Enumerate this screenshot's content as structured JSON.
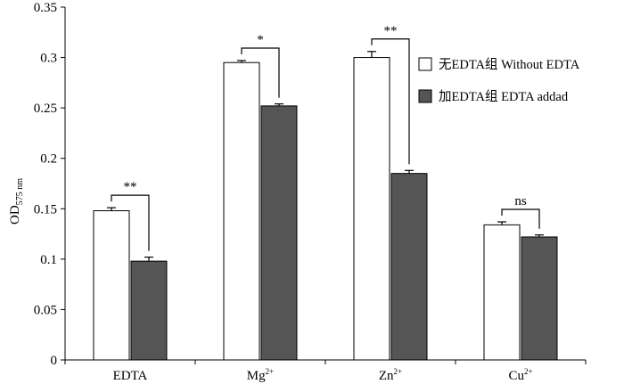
{
  "chart_data": {
    "type": "bar",
    "title": "",
    "xlabel": "",
    "ylabel": "OD",
    "ylabel_sub": "575 nm",
    "ylim": [
      0,
      0.35
    ],
    "yticks": [
      "0",
      "0.05",
      "0.1",
      "0.15",
      "0.2",
      "0.25",
      "0.3",
      "0.35"
    ],
    "categories": [
      {
        "base": "EDTA",
        "sup": ""
      },
      {
        "base": "Mg",
        "sup": "2+"
      },
      {
        "base": "Zn",
        "sup": "2+"
      },
      {
        "base": "Cu",
        "sup": "2+"
      }
    ],
    "series": [
      {
        "name": "无EDTA组 Without EDTA",
        "color": "#ffffff",
        "values": [
          0.148,
          0.295,
          0.3,
          0.134
        ],
        "errors": [
          0.003,
          0.002,
          0.006,
          0.003
        ]
      },
      {
        "name": "加EDTA组  EDTA addad",
        "color": "#555555",
        "values": [
          0.098,
          0.252,
          0.185,
          0.122
        ],
        "errors": [
          0.004,
          0.002,
          0.003,
          0.002
        ]
      }
    ],
    "significance": [
      "**",
      "*",
      "**",
      "ns"
    ],
    "legend_position": "top-right",
    "grid": false
  }
}
